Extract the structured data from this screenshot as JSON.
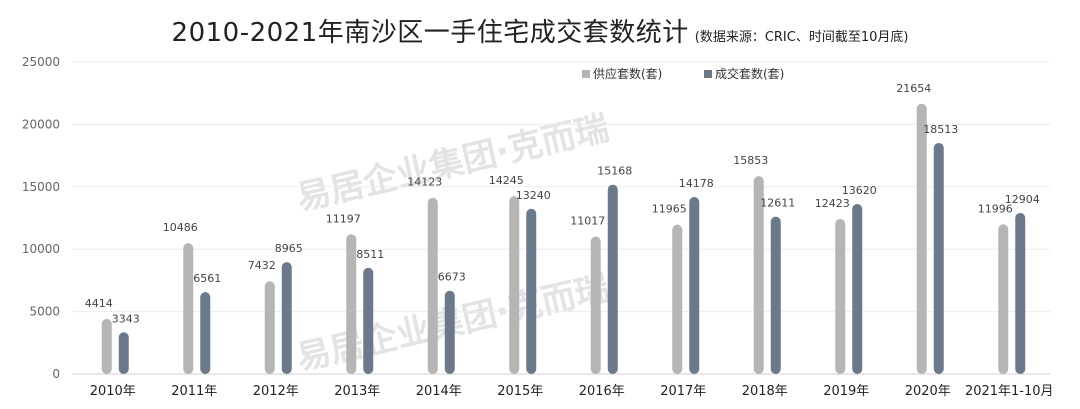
{
  "title": "2010-2021年南沙区一手住宅成交套数统计",
  "subtitle": "(数据来源：CRIC、时间截至10月底)",
  "watermark": "易居企业集团·克而瑞",
  "chart_data": {
    "type": "bar",
    "categories": [
      "2010年",
      "2011年",
      "2012年",
      "2013年",
      "2014年",
      "2015年",
      "2016年",
      "2017年",
      "2018年",
      "2019年",
      "2020年",
      "2021年1-10月"
    ],
    "series": [
      {
        "name": "供应套数(套)",
        "color": "#b5b5b5",
        "values": [
          4414,
          10486,
          7432,
          11197,
          14123,
          14245,
          11017,
          11965,
          15853,
          12423,
          21654,
          11996
        ]
      },
      {
        "name": "成交套数(套)",
        "color": "#6b7a8a",
        "values": [
          3343,
          6561,
          8965,
          8511,
          6673,
          13240,
          15168,
          14178,
          12611,
          13620,
          18513,
          12904
        ]
      }
    ],
    "ylim": [
      0,
      25000
    ],
    "yticks": [
      0,
      5000,
      10000,
      15000,
      20000,
      25000
    ],
    "grid": true,
    "legend_position": "top-center"
  }
}
